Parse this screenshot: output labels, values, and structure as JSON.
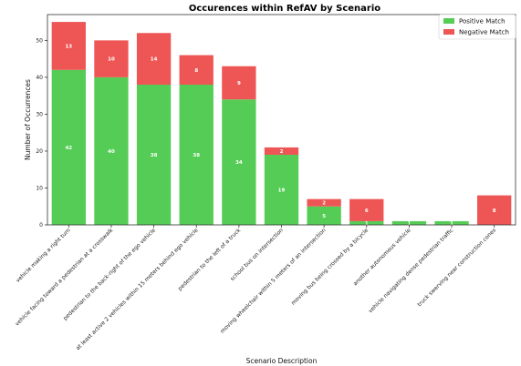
{
  "chart_data": {
    "type": "bar",
    "stacked": true,
    "title": "Occurences within RefAV by Scenario",
    "xlabel": "Scenario Description",
    "ylabel": "Number of Occurrences",
    "ylim": [
      0,
      57
    ],
    "yticks": [
      0,
      10,
      20,
      30,
      40,
      50
    ],
    "grid": false,
    "legend_position": "top-right",
    "colors": {
      "positive": "#55cc55",
      "negative": "#ee5555"
    },
    "categories": [
      "vehicle making a right turn",
      "vehicle facing toward a pedestrian at a crosswalk",
      "pedestrian to the back-right of the ego vehicle",
      "at least active 2 vehicles within 15 meters behind ego vehicle",
      "pedestrian to the left of a truck",
      "school bus on intersection",
      "moving wheelchair within 5 meters of an intersection",
      "moving bus being crossed by a bicycle",
      "another autonomous vehicle",
      "vehicle navigating dense pedestrian traffic",
      "truck swerving near construction cones"
    ],
    "series": [
      {
        "name": "Positive Match",
        "values": [
          42,
          40,
          38,
          38,
          34,
          19,
          5,
          1,
          1,
          1,
          0
        ]
      },
      {
        "name": "Negative Match",
        "values": [
          13,
          10,
          14,
          8,
          9,
          2,
          2,
          6,
          0,
          0,
          8
        ]
      }
    ]
  }
}
